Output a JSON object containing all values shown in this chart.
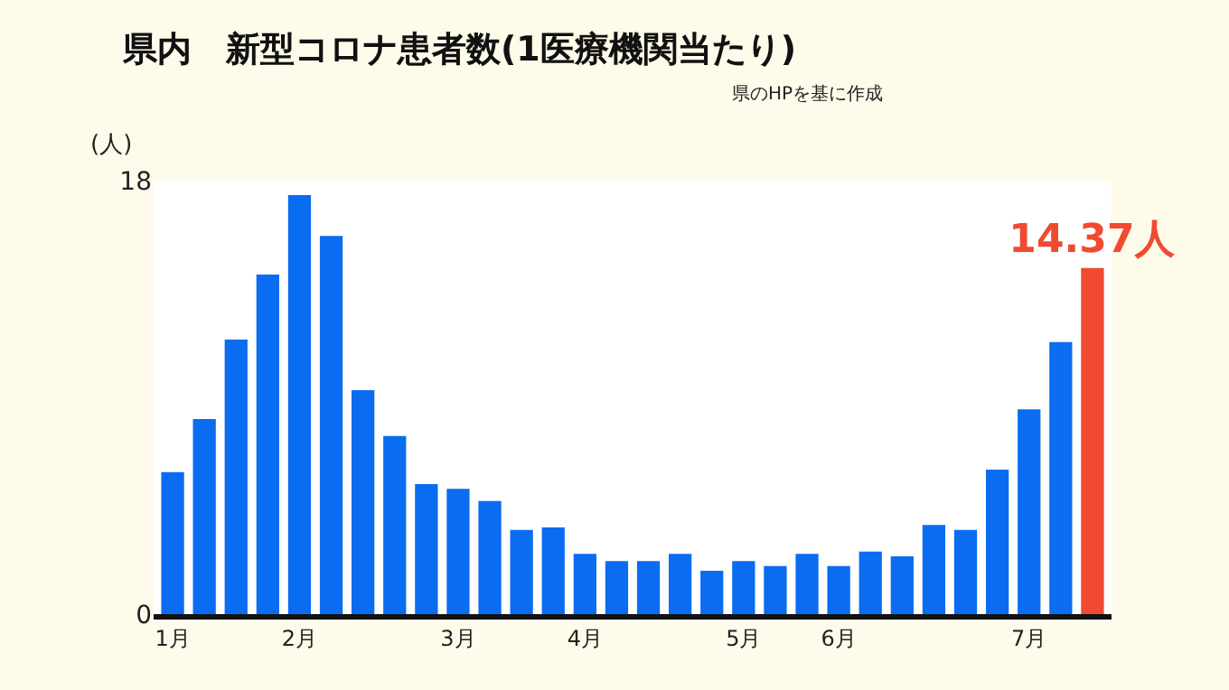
{
  "chart_data": {
    "type": "bar",
    "title": "県内　新型コロナ患者数(1医療機関当たり)",
    "subtitle": "県のHPを基に作成",
    "ylabel": "(人)",
    "categories": [
      "1月",
      null,
      null,
      null,
      "2月",
      null,
      null,
      null,
      null,
      "3月",
      null,
      null,
      null,
      "4月",
      null,
      null,
      null,
      null,
      "5月",
      null,
      null,
      "6月",
      null,
      null,
      null,
      null,
      null,
      "7月",
      null,
      null
    ],
    "values": [
      5.9,
      8.1,
      11.4,
      14.1,
      17.4,
      15.7,
      9.3,
      7.4,
      5.4,
      5.2,
      4.7,
      3.5,
      3.6,
      2.5,
      2.2,
      2.2,
      2.5,
      1.8,
      2.2,
      2.0,
      2.5,
      2.0,
      2.6,
      2.4,
      3.7,
      3.5,
      6.0,
      8.5,
      11.3,
      14.37
    ],
    "colors": [
      "#0a6cf0",
      "#0a6cf0",
      "#0a6cf0",
      "#0a6cf0",
      "#0a6cf0",
      "#0a6cf0",
      "#0a6cf0",
      "#0a6cf0",
      "#0a6cf0",
      "#0a6cf0",
      "#0a6cf0",
      "#0a6cf0",
      "#0a6cf0",
      "#0a6cf0",
      "#0a6cf0",
      "#0a6cf0",
      "#0a6cf0",
      "#0a6cf0",
      "#0a6cf0",
      "#0a6cf0",
      "#0a6cf0",
      "#0a6cf0",
      "#0a6cf0",
      "#0a6cf0",
      "#0a6cf0",
      "#0a6cf0",
      "#0a6cf0",
      "#0a6cf0",
      "#0a6cf0",
      "#f04a30"
    ],
    "value_labels": [
      null,
      null,
      null,
      null,
      null,
      null,
      null,
      null,
      null,
      null,
      null,
      null,
      null,
      null,
      null,
      null,
      null,
      null,
      null,
      null,
      null,
      null,
      null,
      null,
      null,
      null,
      null,
      null,
      null,
      "14.37人"
    ],
    "ylim": [
      0,
      18
    ],
    "yticks": [
      0,
      18
    ],
    "legend": false
  }
}
